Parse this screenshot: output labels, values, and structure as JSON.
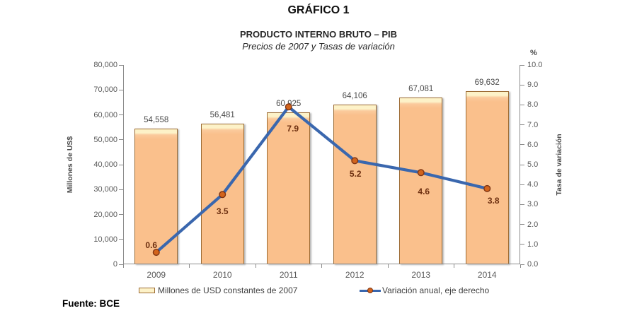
{
  "page": {
    "title": "GRÁFICO 1",
    "source_label": "Fuente:",
    "source_value": "BCE"
  },
  "chart_data": {
    "type": "bar+line combo",
    "title": "PRODUCTO INTERNO BRUTO – PIB",
    "subtitle": "Precios de 2007 y Tasas de variación",
    "categories": [
      "2009",
      "2010",
      "2011",
      "2012",
      "2013",
      "2014"
    ],
    "series": [
      {
        "name": "Millones de USD constantes de 2007",
        "type": "bar",
        "axis": "left",
        "values": [
          54558,
          56481,
          60925,
          64106,
          67081,
          69632
        ],
        "value_labels": [
          "54,558",
          "56,481",
          "60,925",
          "64,106",
          "67,081",
          "69,632"
        ]
      },
      {
        "name": "Variación anual, eje derecho",
        "type": "line",
        "axis": "right",
        "values": [
          0.6,
          3.5,
          7.9,
          5.2,
          4.6,
          3.8
        ],
        "value_labels": [
          "0.6",
          "3.5",
          "7.9",
          "5.2",
          "4.6",
          "3.8"
        ]
      }
    ],
    "left_axis": {
      "title": "Millones de US$",
      "min": 0,
      "max": 80000,
      "step": 10000,
      "tick_labels": [
        "80,000",
        "70,000",
        "60,000",
        "50,000",
        "40,000",
        "30,000",
        "20,000",
        "10,000",
        "0"
      ]
    },
    "right_axis": {
      "title": "Tasa de variación",
      "unit": "%",
      "min": 0,
      "max": 10,
      "step": 1,
      "tick_labels": [
        "10.0",
        "9.0",
        "8.0",
        "7.0",
        "6.0",
        "5.0",
        "4.0",
        "3.0",
        "2.0",
        "1.0",
        "0.0"
      ]
    },
    "grid": false,
    "legend_position": "bottom"
  },
  "colors": {
    "bar_fill": "#FAC08C",
    "bar_fill_light": "#FBCA9C",
    "bar_cap": "#FDF2C8",
    "bar_border": "#9C6B33",
    "line": "#3A67AE",
    "marker_fill": "#D2641C",
    "marker_border": "#7E3413",
    "line_label": "#6C2E0F",
    "axis": "#8C8C8C",
    "tick_text": "#595959"
  }
}
